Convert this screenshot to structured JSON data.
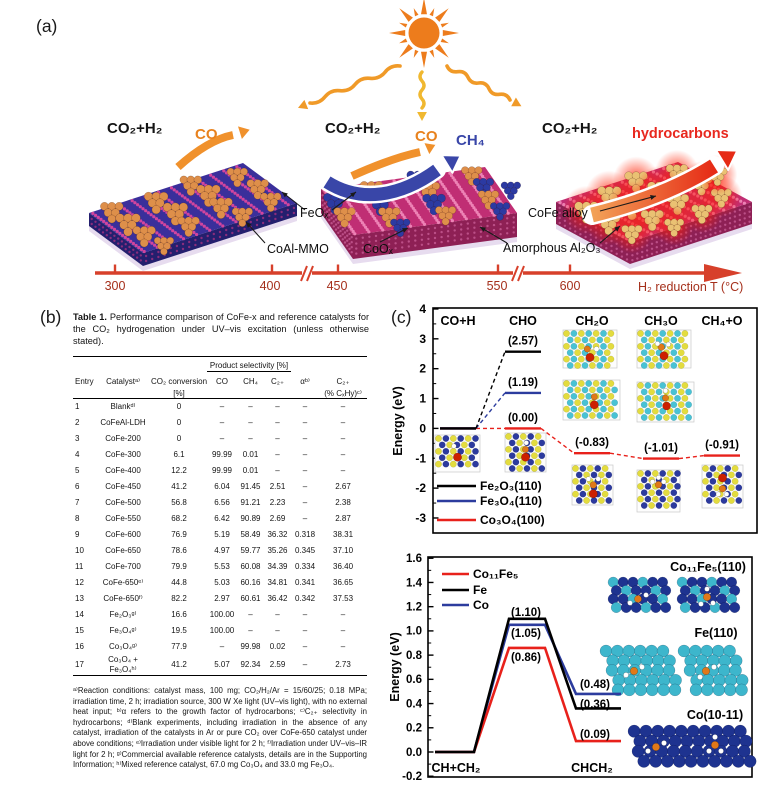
{
  "panel_a": {
    "label": "(a)",
    "stage1": {
      "reactants": "CO₂+H₂",
      "product": "CO",
      "particle": "FeOₓ",
      "support": "CoAl-MMO"
    },
    "stage2": {
      "reactants": "CO₂+H₂",
      "product_co": "CO",
      "product_ch4": "CH₄",
      "particle": "CoOₓ",
      "support": "Amorphous Al₂O₃"
    },
    "stage3": {
      "reactants": "CO₂+H₂",
      "product": "hydrocarbons",
      "particle": "CoFe alloy"
    },
    "axis": {
      "ticks": [
        "300",
        "400",
        "450",
        "550",
        "600"
      ],
      "label": "H₂ reduction T (°C)"
    },
    "colors": {
      "co": "#e8821e",
      "ch4": "#3946a8",
      "hydrocarbons": "#e8281e",
      "axis": "#d7402b",
      "tick_text": "#a5301c"
    }
  },
  "panel_b": {
    "label": "(b)",
    "caption_title": "Table 1.",
    "caption_text": "Performance comparison of CoFe-x and reference catalysts for the CO₂ hydrogenation under UV–vis excitation (unless otherwise stated).",
    "table": {
      "group_header": "Product selectivity [%]",
      "col_entry": "Entry",
      "col_catalyst": "Catalystᵃ⁾",
      "col_conversion_l1": "CO₂ conversion",
      "col_conversion_l2": "[%]",
      "col_co": "CO",
      "col_ch4": "CH₄",
      "col_c2": "C₂₊",
      "col_alpha": "αᵇ⁾",
      "col_c2hy_l1": "C₂₊",
      "col_c2hy_l2": "(% CₓHy)ᶜ⁾",
      "rows": [
        [
          "1",
          "Blankᵈ⁾",
          "0",
          "–",
          "–",
          "–",
          "–",
          "–"
        ],
        [
          "2",
          "CoFeAl-LDH",
          "0",
          "–",
          "–",
          "–",
          "–",
          "–"
        ],
        [
          "3",
          "CoFe-200",
          "0",
          "–",
          "–",
          "–",
          "–",
          "–"
        ],
        [
          "4",
          "CoFe-300",
          "6.1",
          "99.99",
          "0.01",
          "–",
          "–",
          "–"
        ],
        [
          "5",
          "CoFe-400",
          "12.2",
          "99.99",
          "0.01",
          "–",
          "–",
          "–"
        ],
        [
          "6",
          "CoFe-450",
          "41.2",
          "6.04",
          "91.45",
          "2.51",
          "–",
          "2.67"
        ],
        [
          "7",
          "CoFe-500",
          "56.8",
          "6.56",
          "91.21",
          "2.23",
          "–",
          "2.38"
        ],
        [
          "8",
          "CoFe-550",
          "68.2",
          "6.42",
          "90.89",
          "2.69",
          "–",
          "2.87"
        ],
        [
          "9",
          "CoFe-600",
          "76.9",
          "5.19",
          "58.49",
          "36.32",
          "0.318",
          "38.31"
        ],
        [
          "10",
          "CoFe-650",
          "78.6",
          "4.97",
          "59.77",
          "35.26",
          "0.345",
          "37.10"
        ],
        [
          "11",
          "CoFe-700",
          "79.9",
          "5.53",
          "60.08",
          "34.39",
          "0.334",
          "36.40"
        ],
        [
          "12",
          "CoFe-650ᵉ⁾",
          "44.8",
          "5.03",
          "60.16",
          "34.81",
          "0.341",
          "36.65"
        ],
        [
          "13",
          "CoFe-650ᶠ⁾",
          "82.2",
          "2.97",
          "60.61",
          "36.42",
          "0.342",
          "37.53"
        ],
        [
          "14",
          "Fe₂O₃ᵍ⁾",
          "16.6",
          "100.00",
          "–",
          "–",
          "–",
          "–"
        ],
        [
          "15",
          "Fe₃O₄ᵍ⁾",
          "19.5",
          "100.00",
          "–",
          "–",
          "–",
          "–"
        ],
        [
          "16",
          "Co₃O₄ᵍ⁾",
          "77.9",
          "–",
          "99.98",
          "0.02",
          "–",
          "–"
        ],
        [
          "17",
          "Co₃O₄ +\nFe₃O₄ʰ⁾",
          "41.2",
          "5.07",
          "92.34",
          "2.59",
          "–",
          "2.73"
        ]
      ]
    },
    "footnote": "ᵃ⁾Reaction conditions: catalyst mass, 100 mg; CO₂/H₂/Ar = 15/60/25; 0.18 MPa; irradiation time, 2 h; irradiation source, 300 W Xe light (UV–vis light), with no external heat input; ᵇ⁾α refers to the growth factor of hydrocarbons; ᶜ⁾C₂₊ selectivity in hydrocarbons; ᵈ⁾Blank experiments, including irradiation in the absence of any catalyst, irradiation of the catalysts in Ar or pure CO₂ over CoFe-650 catalyst under above conditions; ᵉ⁾Irradiation under visible light for 2 h; ᶠ⁾Irradiation under UV–vis–IR light for 2 h; ᵍ⁾Commercial available reference catalysts, details are in the Supporting Information; ʰ⁾Mixed reference catalyst, 67.0 mg Co₃O₄ and 33.0 mg Fe₃O₄."
  },
  "panel_c": {
    "label": "(c)"
  },
  "chart_data": [
    {
      "type": "line",
      "ylabel": "Energy (eV)",
      "ylim": [
        -3.5,
        4
      ],
      "ytick_values": [
        4,
        3,
        2,
        1,
        0,
        -1,
        -2,
        -3
      ],
      "yticks": [
        "4",
        "3",
        "2",
        "1",
        "0",
        "-1",
        "-2",
        "-3"
      ],
      "stages": [
        "CO+H",
        "CHO",
        "CH₂O",
        "CH₃O",
        "CH₄+O"
      ],
      "series": [
        {
          "name": "Fe₂O₃(110)",
          "color": "#000000",
          "values": [
            0,
            2.57,
            null,
            null,
            null
          ]
        },
        {
          "name": "Fe₃O₄(110)",
          "color": "#2c3c9e",
          "values": [
            0,
            1.19,
            null,
            null,
            null
          ]
        },
        {
          "name": "Co₃O₄(100)",
          "color": "#e8211b",
          "values": [
            0,
            0.0,
            -0.83,
            -1.01,
            -0.91
          ]
        }
      ],
      "point_labels": [
        {
          "text": "(2.57)",
          "stage": 1,
          "value": 2.57
        },
        {
          "text": "(1.19)",
          "stage": 1,
          "value": 1.19
        },
        {
          "text": "(0.00)",
          "stage": 1,
          "value": 0.0
        },
        {
          "text": "(-0.83)",
          "stage": 2,
          "value": -0.83
        },
        {
          "text": "(-1.01)",
          "stage": 3,
          "value": -1.01
        },
        {
          "text": "(-0.91)",
          "stage": 4,
          "value": -0.91
        }
      ],
      "legend_position": "bottom-left",
      "grid": false
    },
    {
      "type": "line",
      "ylabel": "Energy (eV)",
      "ylim": [
        -0.2,
        1.6
      ],
      "ytick_values": [
        1.6,
        1.4,
        1.2,
        1.0,
        0.8,
        0.6,
        0.4,
        0.2,
        0.0,
        -0.2
      ],
      "yticks": [
        "1.6",
        "1.4",
        "1.2",
        "1.0",
        "0.8",
        "0.6",
        "0.4",
        "0.2",
        "0.0",
        "-0.2"
      ],
      "stages": [
        "CH+CH₂",
        "CHCH₂"
      ],
      "series": [
        {
          "name": "Co₁₁Fe₅",
          "color": "#e8211b",
          "values": [
            0,
            0.86,
            0.09
          ]
        },
        {
          "name": "Fe",
          "color": "#000000",
          "values": [
            0,
            1.1,
            0.36
          ]
        },
        {
          "name": "Co",
          "color": "#2c3c9e",
          "values": [
            0,
            1.05,
            0.48
          ]
        }
      ],
      "point_labels": [
        {
          "text": "(1.10)"
        },
        {
          "text": "(1.05)"
        },
        {
          "text": "(0.86)"
        },
        {
          "text": "(0.48)"
        },
        {
          "text": "(0.36)"
        },
        {
          "text": "(0.09)"
        }
      ],
      "surface_labels": [
        "Co₁₁Fe₅(110)",
        "Fe(110)",
        "Co(10-11)"
      ],
      "legend_position": "top-left",
      "grid": false
    }
  ]
}
